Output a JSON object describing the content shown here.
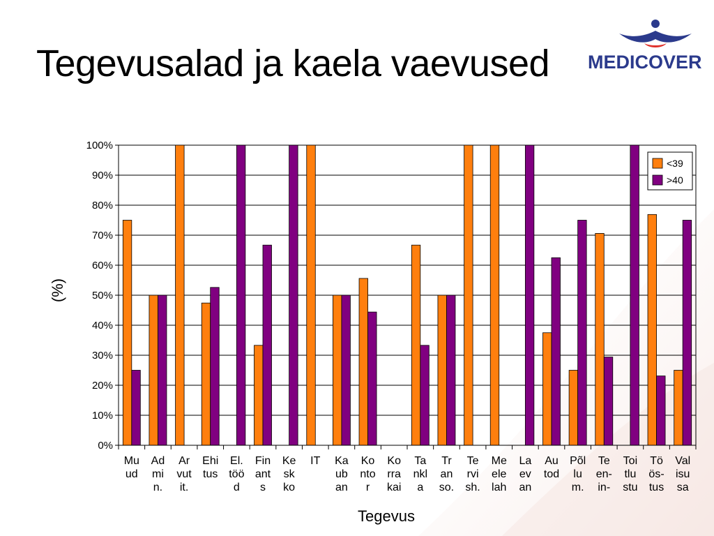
{
  "slide": {
    "title": "Tegevusalad ja kaela vaevused",
    "logo_text": "MEDICOVER",
    "colors": {
      "series1": "#FF7F0E",
      "series2": "#800080",
      "logo": "#2B3A8C"
    }
  },
  "chart_data": {
    "type": "bar",
    "title": "",
    "xlabel": "Tegevus",
    "ylabel": "(%)",
    "ylim": [
      0,
      100
    ],
    "yticks": [
      "0%",
      "10%",
      "20%",
      "30%",
      "40%",
      "50%",
      "60%",
      "70%",
      "80%",
      "90%",
      "100%"
    ],
    "grid": true,
    "legend_position": "top-right",
    "categories": [
      [
        "Mu",
        "ud"
      ],
      [
        "Ad",
        "mi",
        "n."
      ],
      [
        "Ar",
        "vut",
        "it."
      ],
      [
        "Ehi",
        "tus"
      ],
      [
        "El.",
        "töö",
        "d"
      ],
      [
        "Fin",
        "ant",
        "s"
      ],
      [
        "Ke",
        "sk",
        "ko"
      ],
      [
        "IT"
      ],
      [
        "Ka",
        "ub",
        "an"
      ],
      [
        "Ko",
        "nto",
        "r"
      ],
      [
        "Ko",
        "rra",
        "kai"
      ],
      [
        "Ta",
        "nkl",
        "a"
      ],
      [
        "Tr",
        "an",
        "so."
      ],
      [
        "Te",
        "rvi",
        "sh."
      ],
      [
        "Me",
        "ele",
        "lah"
      ],
      [
        "La",
        "ev",
        "an"
      ],
      [
        "Au",
        "tod"
      ],
      [
        "Põl",
        "lu",
        "m."
      ],
      [
        "Te",
        "en-",
        "in-"
      ],
      [
        "Toi",
        "tlu",
        "stu"
      ],
      [
        "Tö",
        "ös-",
        "tus"
      ],
      [
        "Val",
        "isu",
        "sa"
      ]
    ],
    "series": [
      {
        "name": "<39",
        "color": "#FF7F0E",
        "values": [
          75,
          50,
          100,
          47.4,
          0,
          33.3,
          0,
          100,
          50,
          55.6,
          0,
          66.7,
          50,
          100,
          100,
          0,
          37.5,
          25,
          70.6,
          0,
          76.9,
          25
        ]
      },
      {
        "name": ">40",
        "color": "#800080",
        "values": [
          25,
          50,
          0,
          52.6,
          100,
          66.7,
          100,
          0,
          50,
          44.4,
          0,
          33.3,
          50,
          0,
          0,
          100,
          62.5,
          75,
          29.4,
          100,
          23.1,
          75
        ]
      }
    ]
  }
}
